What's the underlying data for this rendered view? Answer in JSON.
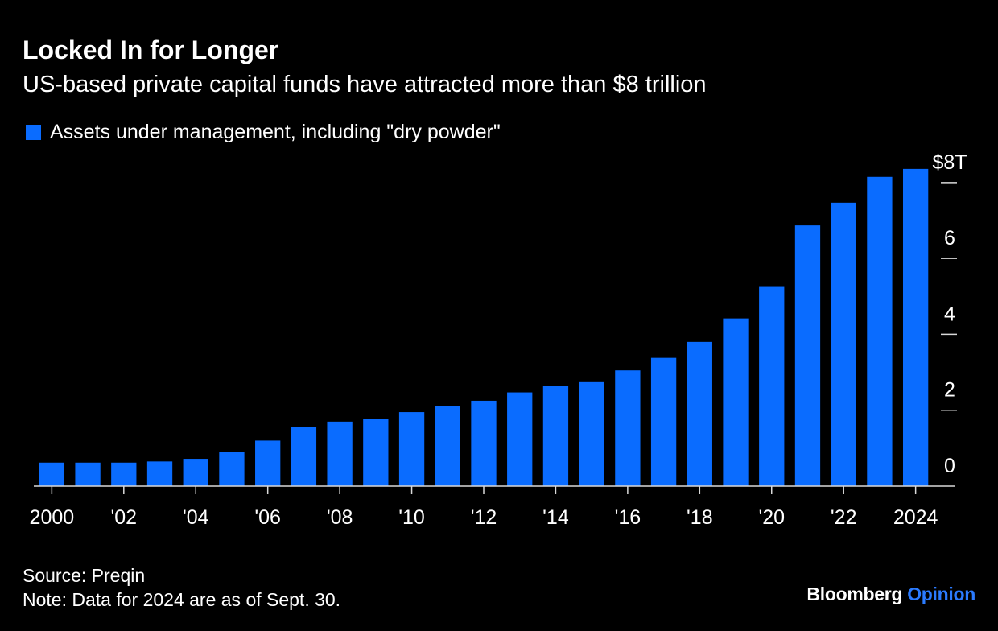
{
  "header": {
    "title": "Locked In for Longer",
    "subtitle": "US-based private capital funds have attracted more than $8 trillion"
  },
  "footer": {
    "source": "Source: Preqin",
    "note": "Note: Data for 2024 are as of Sept. 30.",
    "brand_primary": "Bloomberg",
    "brand_secondary": "Opinion"
  },
  "colors": {
    "background": "#000000",
    "bar": "#0a6cff",
    "text": "#ffffff",
    "brand_accent": "#2b7bff"
  },
  "chart_data": {
    "type": "bar",
    "legend": "Assets under management, including \"dry powder\"",
    "legend_position": "top-left",
    "categories": [
      "2000",
      "2001",
      "2002",
      "2003",
      "2004",
      "2005",
      "2006",
      "2007",
      "2008",
      "2009",
      "2010",
      "2011",
      "2012",
      "2013",
      "2014",
      "2015",
      "2016",
      "2017",
      "2018",
      "2019",
      "2020",
      "2021",
      "2022",
      "2023",
      "2024"
    ],
    "x_tick_labels": [
      "2000",
      "",
      "'02",
      "",
      "'04",
      "",
      "'06",
      "",
      "'08",
      "",
      "'10",
      "",
      "'12",
      "",
      "'14",
      "",
      "'16",
      "",
      "'18",
      "",
      "'20",
      "",
      "'22",
      "",
      "2024"
    ],
    "series": [
      {
        "name": "Assets under management, including \"dry powder\"",
        "values": [
          0.62,
          0.62,
          0.62,
          0.65,
          0.72,
          0.9,
          1.2,
          1.55,
          1.7,
          1.78,
          1.95,
          2.1,
          2.25,
          2.47,
          2.64,
          2.74,
          3.05,
          3.38,
          3.8,
          4.42,
          5.27,
          6.87,
          7.47,
          8.15,
          8.36
        ]
      }
    ],
    "y_ticks": [
      0,
      2,
      4,
      6,
      8
    ],
    "y_tick_labels": [
      "0",
      "2",
      "4",
      "6",
      "$8T"
    ],
    "ylim": [
      0,
      8.4
    ],
    "y_axis_side": "right",
    "grid": false
  }
}
